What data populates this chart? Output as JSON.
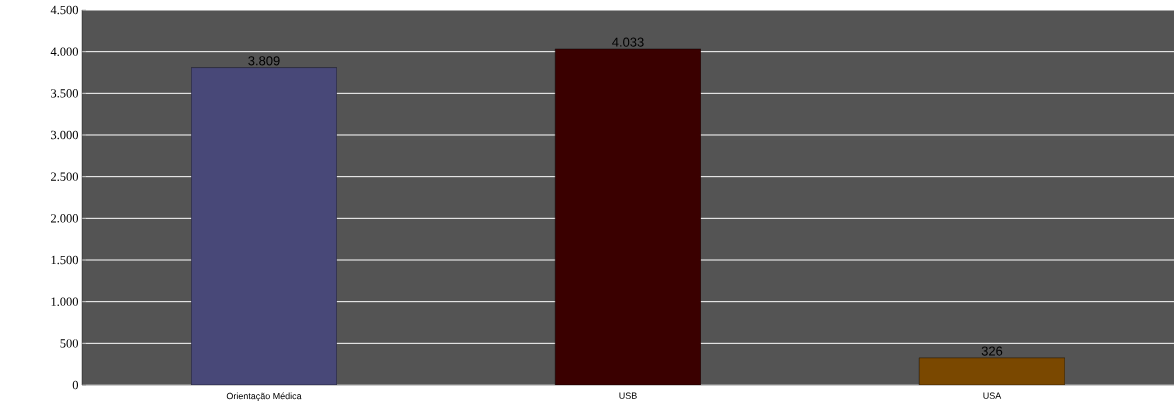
{
  "chart_data": {
    "type": "bar",
    "categories": [
      "Orientação Médica",
      "USB",
      "USA"
    ],
    "values": [
      3809,
      4033,
      326
    ],
    "colors": [
      "#484878",
      "#3a0000",
      "#7a4800"
    ],
    "value_labels": [
      "3.809",
      "4.033",
      "326"
    ],
    "ylim": [
      0,
      4500
    ],
    "yticks": [
      {
        "value": 0,
        "label": "0"
      },
      {
        "value": 500,
        "label": "500"
      },
      {
        "value": 1000,
        "label": "1.000"
      },
      {
        "value": 1500,
        "label": "1.500"
      },
      {
        "value": 2000,
        "label": "2.000"
      },
      {
        "value": 2500,
        "label": "2.500"
      },
      {
        "value": 3000,
        "label": "3.000"
      },
      {
        "value": 3500,
        "label": "3.500"
      },
      {
        "value": 4000,
        "label": "4.000"
      },
      {
        "value": 4500,
        "label": "4.500"
      }
    ],
    "grid": "y"
  }
}
